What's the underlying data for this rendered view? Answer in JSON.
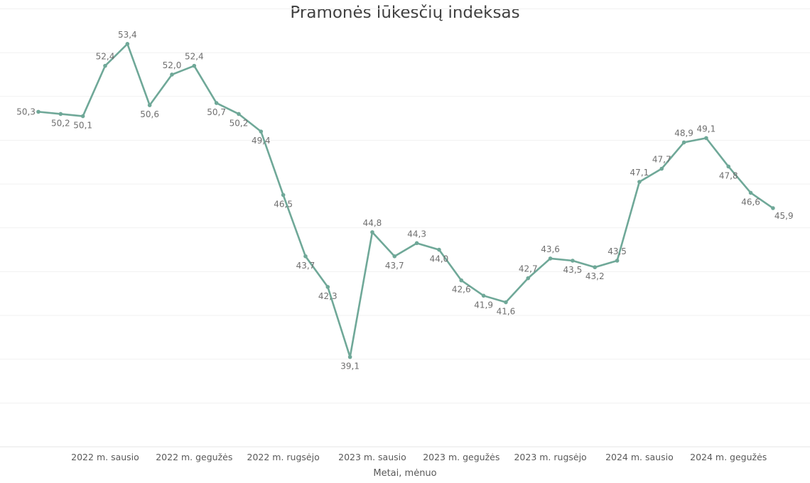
{
  "chart_data": {
    "type": "line",
    "title": "Pramonės lūkesčių indeksas",
    "xlabel": "Metai, mėnuo",
    "ylabel": "",
    "x_tick_labels": [
      {
        "index": 3,
        "label": "2022 m. sausio"
      },
      {
        "index": 7,
        "label": "2022 m. gegužės"
      },
      {
        "index": 11,
        "label": "2022 m. rugsėjo"
      },
      {
        "index": 15,
        "label": "2023 m. sausio"
      },
      {
        "index": 19,
        "label": "2023 m. gegužės"
      },
      {
        "index": 23,
        "label": "2023 m. rugsėjo"
      },
      {
        "index": 27,
        "label": "2024 m. sausio"
      },
      {
        "index": 31,
        "label": "2024 m. gegužės"
      }
    ],
    "values": [
      50.3,
      50.2,
      50.1,
      52.4,
      53.4,
      50.6,
      52.0,
      52.4,
      50.7,
      50.2,
      49.4,
      46.5,
      43.7,
      42.3,
      39.1,
      44.8,
      43.7,
      44.3,
      44.0,
      42.6,
      41.9,
      41.6,
      42.7,
      43.6,
      43.5,
      43.2,
      43.5,
      47.1,
      47.7,
      48.9,
      49.1,
      47.8,
      46.6,
      45.9
    ],
    "data_labels": [
      "50,3",
      "50,2",
      "50,1",
      "52,4",
      "53,4",
      "50,6",
      "52,0",
      "52,4",
      "50,7",
      "50,2",
      "49,4",
      "46,5",
      "43,7",
      "42,3",
      "39,1",
      "44,8",
      "43,7",
      "44,3",
      "44,0",
      "42,6",
      "41,9",
      "41,6",
      "42,7",
      "43,6",
      "43,5",
      "43,2",
      "43,5",
      "47,1",
      "47,7",
      "48,9",
      "49,1",
      "47,8",
      "46,6",
      "45,9"
    ],
    "ylim": [
      35,
      55
    ],
    "grid": true,
    "legend": "none",
    "colors": {
      "line": "#6fa898",
      "grid": "#f1f1f1",
      "text": "#595959"
    }
  }
}
